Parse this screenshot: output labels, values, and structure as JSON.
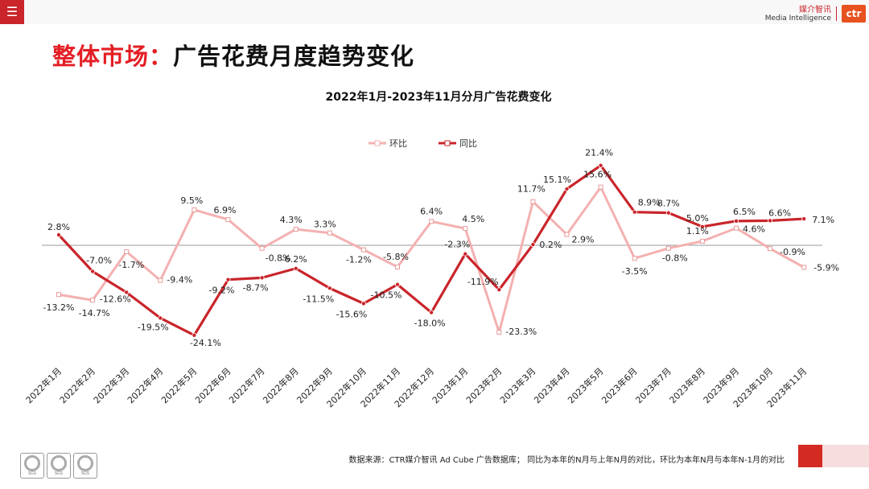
{
  "header": {
    "menu_icon": "menu-icon",
    "brand_cn": "媒介智讯",
    "brand_en": "Media Intelligence",
    "logo_text": "ctr"
  },
  "page": {
    "title_part1": "整体市场：",
    "title_part2": "广告花费月度趋势变化"
  },
  "chart_data": {
    "type": "line",
    "title": "2022年1月-2023年11月分月广告花费变化",
    "legend_position": "top",
    "categories": [
      "2022年1月",
      "2022年2月",
      "2022年3月",
      "2022年4月",
      "2022年5月",
      "2022年6月",
      "2022年7月",
      "2022年8月",
      "2022年9月",
      "2022年10月",
      "2022年11月",
      "2022年12月",
      "2023年1月",
      "2023年2月",
      "2023年3月",
      "2023年4月",
      "2023年5月",
      "2023年6月",
      "2023年7月",
      "2023年8月",
      "2023年9月",
      "2023年10月",
      "2023年11月"
    ],
    "series": [
      {
        "name": "环比",
        "color": "#f4b0b0",
        "values": [
          -13.2,
          -14.7,
          -1.7,
          -9.4,
          9.5,
          6.9,
          -0.8,
          4.3,
          3.3,
          -1.2,
          -5.8,
          6.4,
          4.5,
          -23.3,
          11.7,
          2.9,
          15.6,
          -3.5,
          -0.8,
          1.1,
          4.6,
          -0.9,
          -5.9
        ],
        "labels": [
          "-13.2%",
          "-14.7%",
          "-1.7%",
          "-9.4%",
          "9.5%",
          "6.9%",
          "-0.8%",
          "4.3%",
          "3.3%",
          "-1.2%",
          "-5.8%",
          "6.4%",
          "4.5%",
          "-23.3%",
          "11.7%",
          "2.9%",
          "15.6%",
          "-3.5%",
          "-0.8%",
          "1.1%",
          "4.6%",
          "-0.9%",
          "-5.9%"
        ]
      },
      {
        "name": "同比",
        "color": "#c9252b",
        "values": [
          2.8,
          -7.0,
          -12.6,
          -19.5,
          -24.1,
          -9.2,
          -8.7,
          -6.2,
          -11.5,
          -15.6,
          -10.5,
          -18.0,
          -2.3,
          -11.9,
          0.2,
          15.1,
          21.4,
          8.9,
          8.7,
          5.0,
          6.5,
          6.6,
          7.1
        ],
        "labels": [
          "2.8%",
          "-7.0%",
          "-12.6%",
          "-19.5%",
          "-24.1%",
          "-9.2%",
          "-8.7%",
          "-6.2%",
          "-11.5%",
          "-15.6%",
          "-10.5%",
          "-18.0%",
          "-2.3%",
          "-11.9%",
          "0.2%",
          "15.1%",
          "21.4%",
          "8.9%",
          "8.7%",
          "5.0%",
          "6.5%",
          "6.6%",
          "7.1%"
        ]
      }
    ]
  },
  "footer": {
    "source_note": "数据来源：CTR媒介智讯 Ad Cube 广告数据库；  同比为本年的N月与上年N月的对比，环比为本年N月与本年N-1月的对比",
    "cert_label": "SGS"
  }
}
